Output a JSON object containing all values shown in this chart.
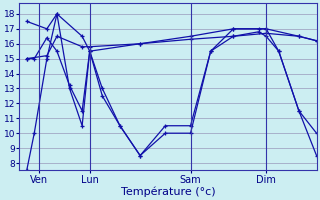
{
  "background_color": "#cceef2",
  "grid_color": "#9999bb",
  "line_color": "#1111aa",
  "xlabel": "Température (°c)",
  "xlabel_fontsize": 8,
  "yticks": [
    8,
    9,
    10,
    11,
    12,
    13,
    14,
    15,
    16,
    17,
    18
  ],
  "ylim": [
    7.5,
    18.7
  ],
  "xlim": [
    -3,
    115
  ],
  "xtick_positions": [
    5,
    25,
    65,
    95
  ],
  "xtick_labels": [
    "Ven",
    "Lun",
    "Sam",
    "Dim"
  ],
  "vline_positions": [
    5,
    25,
    65,
    95
  ],
  "series": [
    {
      "x": [
        0,
        3,
        8,
        12,
        17,
        22,
        25,
        30,
        37,
        45,
        55,
        65,
        73,
        82,
        92,
        95,
        100,
        108,
        115
      ],
      "y": [
        7.5,
        10.0,
        15.0,
        18.0,
        13.0,
        10.5,
        15.5,
        13.0,
        10.5,
        8.5,
        10.0,
        10.0,
        15.5,
        17.0,
        17.0,
        17.0,
        15.5,
        11.5,
        8.5
      ]
    },
    {
      "x": [
        0,
        3,
        8,
        12,
        17,
        22,
        25,
        30,
        37,
        45,
        55,
        65,
        73,
        82,
        92,
        95,
        100,
        108,
        115
      ],
      "y": [
        15.0,
        15.0,
        16.4,
        15.5,
        13.2,
        11.5,
        15.5,
        12.5,
        10.5,
        8.5,
        10.5,
        10.5,
        15.5,
        16.5,
        16.8,
        16.5,
        15.5,
        11.5,
        10.0
      ]
    },
    {
      "x": [
        0,
        8,
        12,
        22,
        25,
        45,
        65,
        82,
        95,
        108,
        115
      ],
      "y": [
        17.5,
        17.0,
        18.0,
        16.5,
        15.5,
        16.0,
        16.5,
        17.0,
        17.0,
        16.5,
        16.2
      ]
    },
    {
      "x": [
        0,
        8,
        12,
        22,
        25,
        45,
        65,
        82,
        95,
        108,
        115
      ],
      "y": [
        15.0,
        15.2,
        16.5,
        15.8,
        15.8,
        16.0,
        16.3,
        16.5,
        16.7,
        16.5,
        16.2
      ]
    }
  ]
}
